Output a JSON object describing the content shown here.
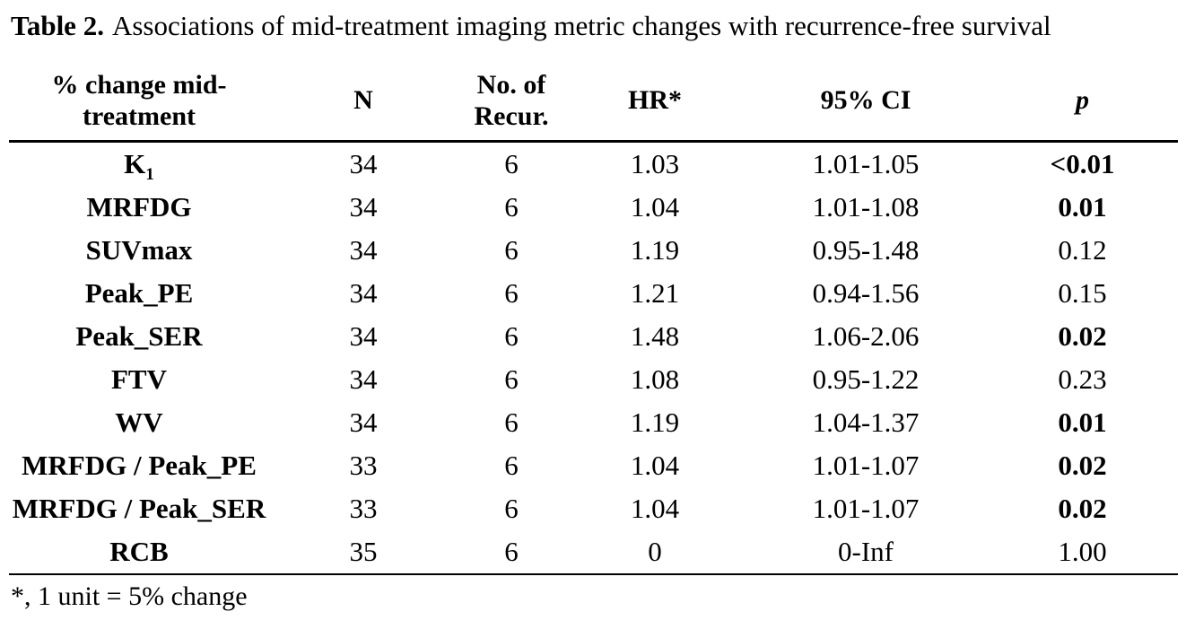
{
  "title": {
    "label": "Table 2.",
    "text": "Associations of mid-treatment imaging metric changes with recurrence-free survival"
  },
  "table": {
    "columns": [
      "% change mid-treatment",
      "N",
      "No. of Recur.",
      "HR*",
      "95% CI",
      "p"
    ],
    "rows": [
      {
        "metric": "K",
        "metric_sub": "1",
        "n": "34",
        "recur": "6",
        "hr": "1.03",
        "ci": "1.01-1.05",
        "p": "<0.01",
        "p_bold": true
      },
      {
        "metric": "MRFDG",
        "metric_sub": "",
        "n": "34",
        "recur": "6",
        "hr": "1.04",
        "ci": "1.01-1.08",
        "p": "0.01",
        "p_bold": true
      },
      {
        "metric": "SUVmax",
        "metric_sub": "",
        "n": "34",
        "recur": "6",
        "hr": "1.19",
        "ci": "0.95-1.48",
        "p": "0.12",
        "p_bold": false
      },
      {
        "metric": "Peak_PE",
        "metric_sub": "",
        "n": "34",
        "recur": "6",
        "hr": "1.21",
        "ci": "0.94-1.56",
        "p": "0.15",
        "p_bold": false
      },
      {
        "metric": "Peak_SER",
        "metric_sub": "",
        "n": "34",
        "recur": "6",
        "hr": "1.48",
        "ci": "1.06-2.06",
        "p": "0.02",
        "p_bold": true
      },
      {
        "metric": "FTV",
        "metric_sub": "",
        "n": "34",
        "recur": "6",
        "hr": "1.08",
        "ci": "0.95-1.22",
        "p": "0.23",
        "p_bold": false
      },
      {
        "metric": "WV",
        "metric_sub": "",
        "n": "34",
        "recur": "6",
        "hr": "1.19",
        "ci": "1.04-1.37",
        "p": "0.01",
        "p_bold": true
      },
      {
        "metric": "MRFDG / Peak_PE",
        "metric_sub": "",
        "n": "33",
        "recur": "6",
        "hr": "1.04",
        "ci": "1.01-1.07",
        "p": "0.02",
        "p_bold": true
      },
      {
        "metric": "MRFDG / Peak_SER",
        "metric_sub": "",
        "n": "33",
        "recur": "6",
        "hr": "1.04",
        "ci": "1.01-1.07",
        "p": "0.02",
        "p_bold": true
      },
      {
        "metric": "RCB",
        "metric_sub": "",
        "n": "35",
        "recur": "6",
        "hr": "0",
        "ci": "0-Inf",
        "p": "1.00",
        "p_bold": false
      }
    ]
  },
  "footnote": "*, 1 unit = 5% change",
  "colors": {
    "text": "#000000",
    "background": "#ffffff",
    "rule": "#000000"
  }
}
